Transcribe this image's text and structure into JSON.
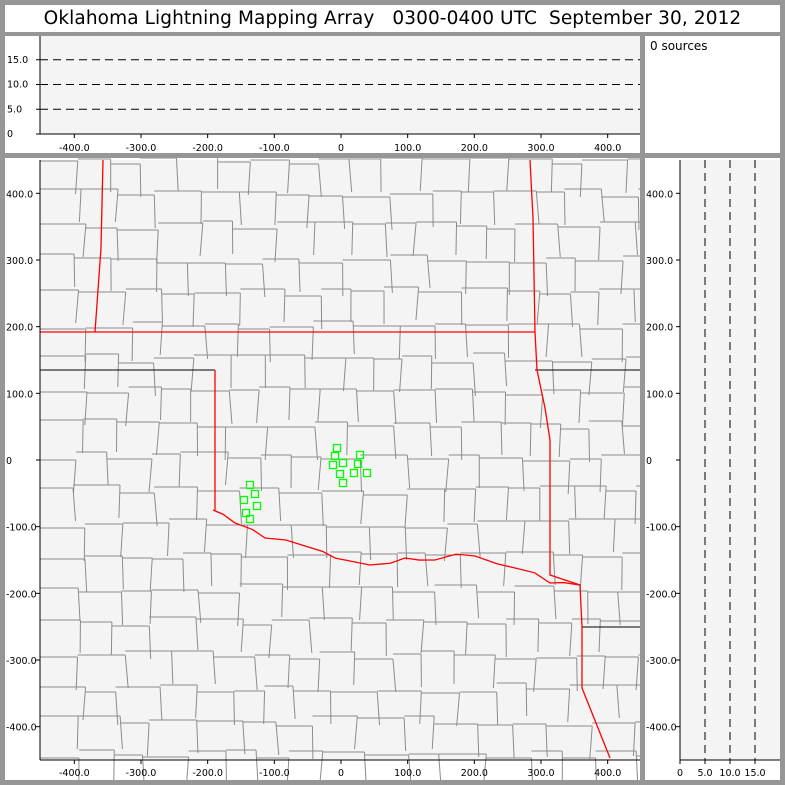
{
  "title": "Oklahoma Lightning Mapping Array   0300-0400 UTC  September 30, 2012",
  "sources_label": "0 sources",
  "colors": {
    "frame": "#969696",
    "plot_bg": "#f4f4f4",
    "state_border": "#ff0000",
    "county_border": "#8c8c8c",
    "station": "#00ff00"
  },
  "chart_data": {
    "type": "scatter",
    "x_ticks": [
      "-400.0",
      "-300.0",
      "-200.0",
      "-100.0",
      "0",
      "100.0",
      "200.0",
      "300.0",
      "400.0"
    ],
    "y_ticks": [
      "400.0",
      "300.0",
      "200.0",
      "100.0",
      "0",
      "-100.0",
      "-200.0",
      "-300.0",
      "-400.0"
    ],
    "alt_ticks": [
      "0",
      "5.0",
      "10.0",
      "15.0"
    ],
    "xlim": [
      -450,
      450
    ],
    "ylim": [
      -450,
      450
    ],
    "alt_lim": [
      0,
      20
    ],
    "alt_gridlines": [
      5,
      10,
      15
    ],
    "stations": [
      [
        -6,
        18
      ],
      [
        -9,
        6
      ],
      [
        28.5,
        7.5
      ],
      [
        -12,
        -7.5
      ],
      [
        3,
        -4.5
      ],
      [
        25.5,
        -6
      ],
      [
        -1.5,
        -21
      ],
      [
        19.5,
        -19.5
      ],
      [
        39,
        -19.5
      ],
      [
        3,
        -34.5
      ],
      [
        -136.5,
        -37.5
      ],
      [
        -129,
        -51
      ],
      [
        -145.5,
        -60
      ],
      [
        -126,
        -69
      ],
      [
        -142.5,
        -79.5
      ],
      [
        -136.5,
        -88.5
      ]
    ],
    "sources": []
  }
}
